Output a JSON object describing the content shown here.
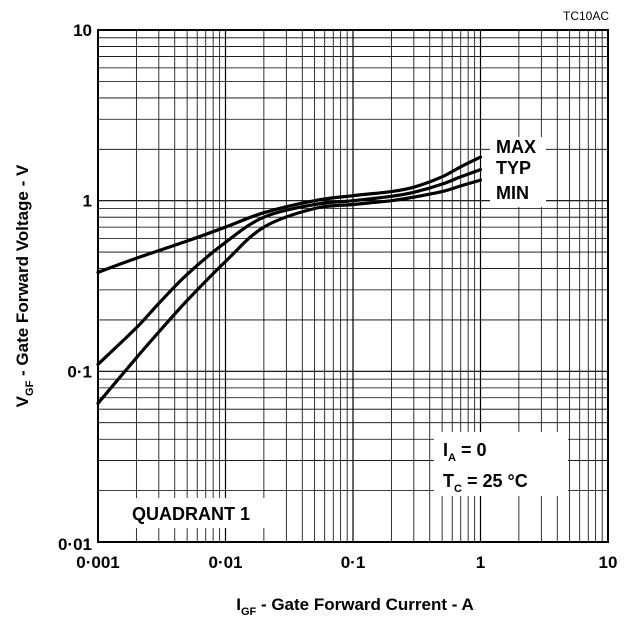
{
  "chart_data": {
    "type": "line",
    "figure_code": "TC10AC",
    "xlabel": {
      "main": "I",
      "sub": "GF",
      "rest": " - Gate Forward Current - A"
    },
    "ylabel": {
      "main": "V",
      "sub": "GF",
      "rest": " - Gate Forward Voltage - V"
    },
    "x_scale": "log",
    "y_scale": "log",
    "xlim": [
      0.001,
      10
    ],
    "ylim": [
      0.01,
      10
    ],
    "x_ticks": [
      {
        "value": 0.001,
        "label": "0·001"
      },
      {
        "value": 0.01,
        "label": "0·01"
      },
      {
        "value": 0.1,
        "label": "0·1"
      },
      {
        "value": 1,
        "label": "1"
      },
      {
        "value": 10,
        "label": "10"
      }
    ],
    "y_ticks": [
      {
        "value": 0.01,
        "label": "0·01"
      },
      {
        "value": 0.1,
        "label": "0·1"
      },
      {
        "value": 1,
        "label": "1"
      },
      {
        "value": 10,
        "label": "10"
      }
    ],
    "grid": true,
    "series": [
      {
        "name": "MAX",
        "x": [
          0.001,
          0.002,
          0.005,
          0.01,
          0.02,
          0.05,
          0.1,
          0.2,
          0.3,
          0.5,
          0.7,
          1.0
        ],
        "y": [
          0.38,
          0.46,
          0.58,
          0.7,
          0.85,
          1.0,
          1.07,
          1.13,
          1.2,
          1.38,
          1.58,
          1.8
        ]
      },
      {
        "name": "TYP",
        "x": [
          0.001,
          0.002,
          0.003,
          0.005,
          0.01,
          0.02,
          0.05,
          0.1,
          0.2,
          0.3,
          0.5,
          0.7,
          1.0
        ],
        "y": [
          0.11,
          0.18,
          0.25,
          0.37,
          0.57,
          0.8,
          0.95,
          1.0,
          1.06,
          1.12,
          1.25,
          1.38,
          1.52
        ]
      },
      {
        "name": "MIN",
        "x": [
          0.001,
          0.002,
          0.003,
          0.005,
          0.01,
          0.02,
          0.05,
          0.1,
          0.2,
          0.3,
          0.5,
          0.7,
          1.0
        ],
        "y": [
          0.065,
          0.12,
          0.17,
          0.26,
          0.44,
          0.7,
          0.9,
          0.95,
          1.0,
          1.05,
          1.13,
          1.22,
          1.32
        ]
      }
    ],
    "annotations": {
      "quadrant": "QUADRANT 1",
      "ia_main": "I",
      "ia_sub": "A",
      "ia_rest": " = 0",
      "tc_main": "T",
      "tc_sub": "C",
      "tc_rest": " = 25 °C"
    }
  }
}
